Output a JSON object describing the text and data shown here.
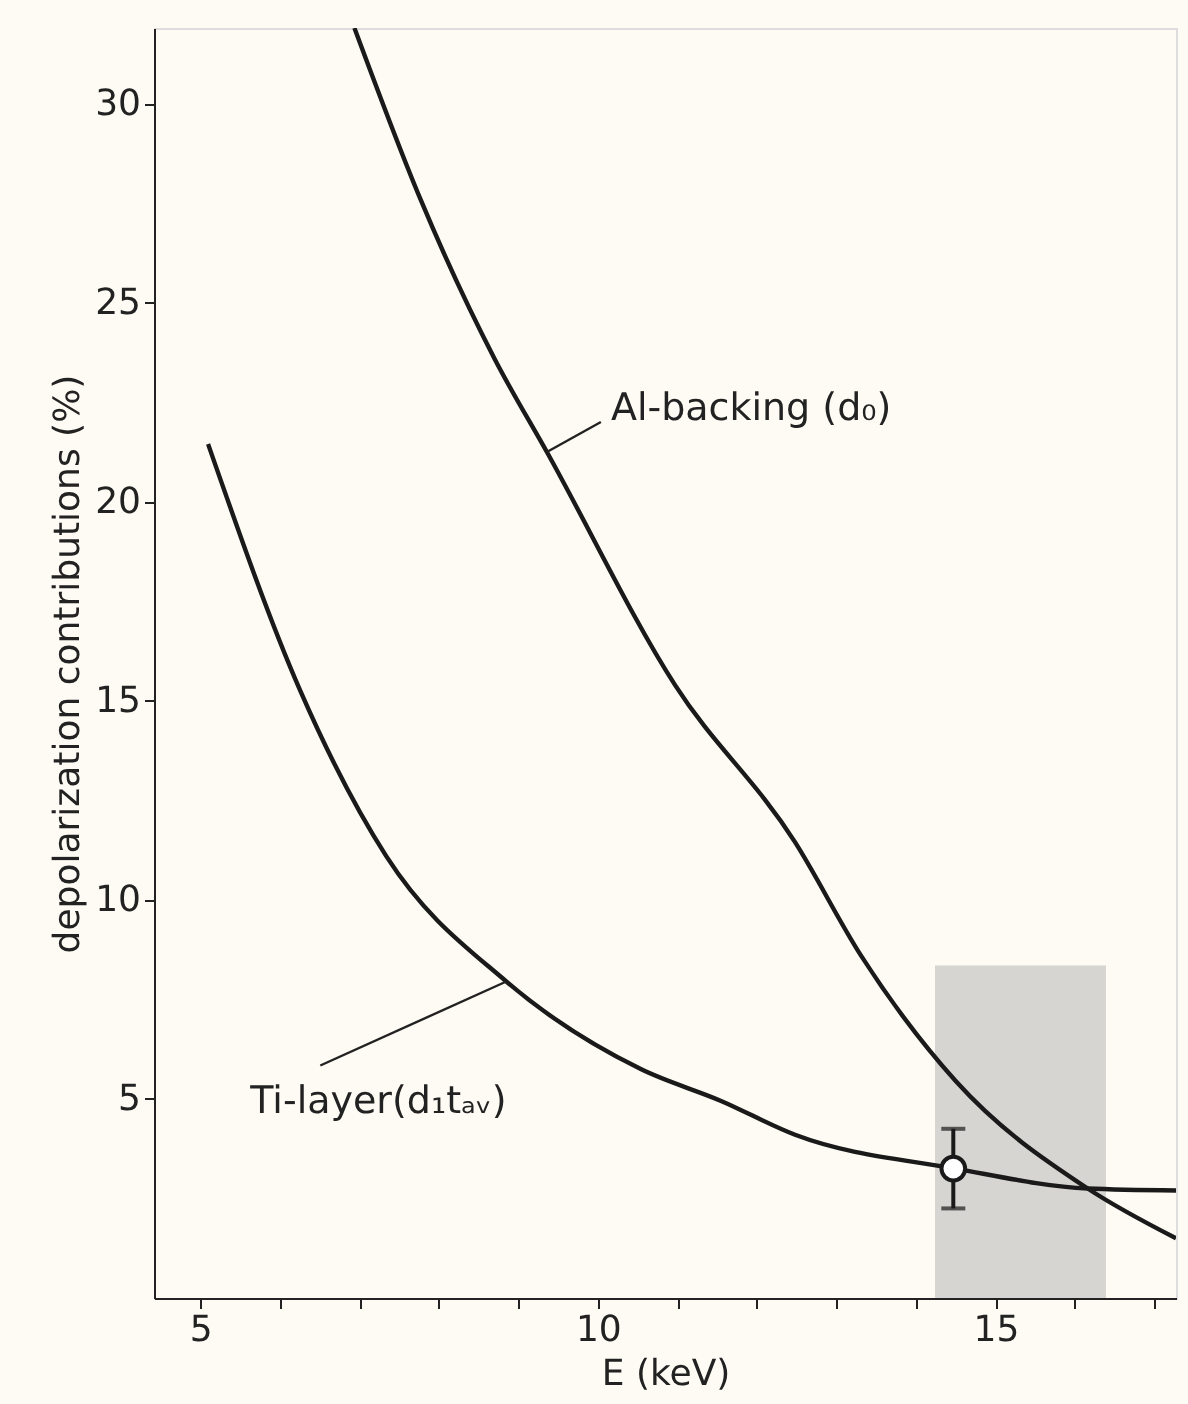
{
  "chart_data": {
    "type": "line",
    "xlabel": "E (keV)",
    "ylabel": "depolarization contributions (%)",
    "xlim": [
      4.42,
      17.27
    ],
    "ylim": [
      0,
      31.9
    ],
    "xticks": [
      5,
      {
        "value": 6,
        "label": null
      },
      {
        "value": 7,
        "label": null
      },
      {
        "value": 8,
        "label": null
      },
      {
        "value": 9,
        "label": null
      },
      10,
      {
        "value": 11,
        "label": null
      },
      {
        "value": 12,
        "label": null
      },
      {
        "value": 13,
        "label": null
      },
      {
        "value": 14,
        "label": null
      },
      15,
      {
        "value": 16,
        "label": null
      },
      {
        "value": 17,
        "label": null
      }
    ],
    "yticks": [
      5,
      10,
      15,
      20,
      25,
      30
    ],
    "grid": false,
    "series": [
      {
        "type": "area",
        "color": "#bdbdbd",
        "x": [
          14.24,
          16.39
        ],
        "values": [
          8.35,
          8.35
        ]
      },
      {
        "color": "#1a1a1a",
        "line_style": "solid",
        "x": [
          6.94,
          7.77,
          8.7,
          9.36,
          10.97,
          12.48,
          13.31,
          14.5,
          16.16,
          17.27
        ],
        "values": [
          31.9,
          27.6,
          23.6,
          21.25,
          15.4,
          11.45,
          8.6,
          5.45,
          2.75,
          1.5
        ]
      },
      {
        "color": "#1a1a1a",
        "line_style": "solid",
        "x": [
          5.1,
          6.26,
          7.34,
          8.85,
          10.54,
          11.55,
          12.48,
          14.5,
          16.16,
          17.27
        ],
        "values": [
          21.45,
          15.25,
          11.1,
          7.95,
          5.75,
          4.95,
          4.1,
          3.25,
          2.75,
          2.7
        ]
      },
      {
        "type": "scatter",
        "color": "#1a1a1a",
        "marker": "circle",
        "x": [
          14.47
        ],
        "values": [
          3.25
        ],
        "errors": [
          1.0
        ]
      }
    ],
    "annotations": [
      {
        "text": "Al-backing (d₀)",
        "x": 9.36,
        "y": 21.25
      },
      {
        "text": "Ti-layer(d₁tₐᵥ)",
        "x": 8.85,
        "y": 7.95
      }
    ]
  }
}
